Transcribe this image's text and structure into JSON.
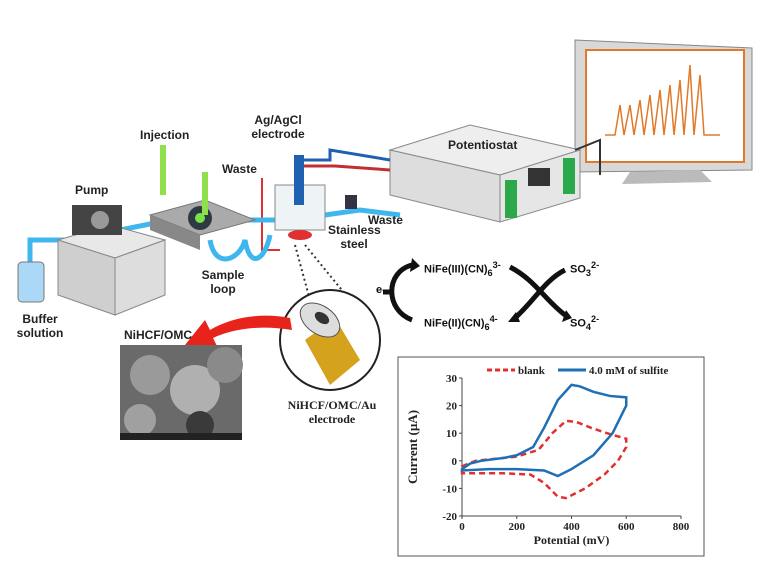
{
  "labels": {
    "injection": "Injection",
    "waste1": "Waste",
    "ag_agcl": "Ag/AgCl electrode",
    "potentiostat": "Potentiostat",
    "pump": "Pump",
    "waste2": "Waste",
    "stainless": "Stainless steel",
    "sample_loop": "Sample loop",
    "buffer": "Buffer solution",
    "nihcf_omc": "NiHCF/OMC",
    "electrode": "NiHCF/OMC/Au electrode"
  },
  "scheme": {
    "electron": "e-",
    "ox": "NiFe(III)(CN)",
    "ox_sub": "6",
    "ox_sup": "3-",
    "red": "NiFe(II)(CN)",
    "red_sub": "6",
    "red_sup": "4-",
    "so3": "SO",
    "so3_sub": "3",
    "so3_sup": "2-",
    "so4": "SO",
    "so4_sub": "4",
    "so4_sup": "2-"
  },
  "colors": {
    "tubing": "#3fb7ee",
    "trace": "#e07a2a",
    "blank": "#e03030",
    "sulfite": "#1f6fb5",
    "arrow": "#e8231c",
    "gold": "#d4a21c"
  },
  "chart_data": {
    "type": "line",
    "xlabel": "Potential (mV)",
    "ylabel": "Current (µA)",
    "xlim": [
      0,
      800
    ],
    "ylim": [
      -20,
      30
    ],
    "xticks": [
      "0",
      "200",
      "400",
      "600",
      "800"
    ],
    "yticks": [
      "-20",
      "-10",
      "0",
      "10",
      "20",
      "30"
    ],
    "grid": false,
    "legend": "top",
    "series": [
      {
        "name": "blank",
        "style": "dashed",
        "color": "#e03030",
        "x": [
          0,
          50,
          100,
          200,
          280,
          330,
          380,
          420,
          470,
          530,
          600,
          600,
          570,
          520,
          450,
          380,
          350,
          300,
          250,
          150,
          50,
          0
        ],
        "y": [
          -2,
          0,
          0.5,
          1.5,
          4,
          10,
          14.5,
          14,
          12,
          10,
          8,
          5,
          0,
          -5,
          -10,
          -13.5,
          -13,
          -8,
          -5,
          -4.5,
          -4.5,
          -4.5
        ]
      },
      {
        "name": "4.0 mM of sulfite",
        "style": "solid",
        "color": "#1f6fb5",
        "x": [
          0,
          30,
          70,
          150,
          200,
          260,
          300,
          350,
          400,
          430,
          480,
          540,
          600,
          600,
          550,
          480,
          400,
          350,
          300,
          200,
          100,
          0
        ],
        "y": [
          -3,
          -1,
          0,
          1,
          2,
          5,
          12,
          22,
          27.5,
          27,
          25,
          23.5,
          23,
          20,
          10,
          2,
          -3,
          -5.5,
          -3.5,
          -3,
          -3,
          -3.5
        ]
      }
    ]
  }
}
